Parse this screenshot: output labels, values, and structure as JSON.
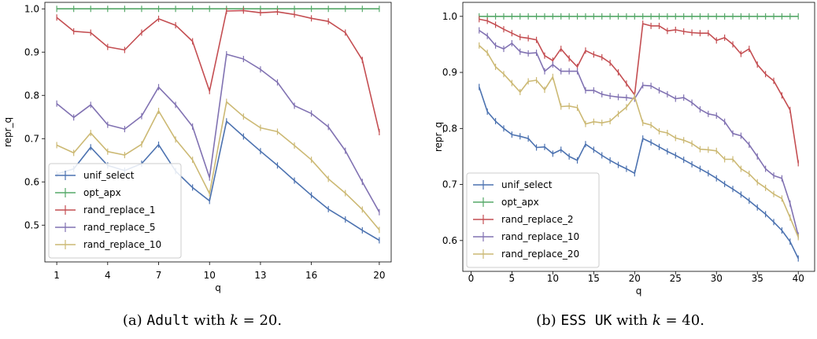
{
  "chart_data": [
    {
      "type": "line",
      "xlabel": "q",
      "ylabel": "repr_q",
      "xlim": [
        0.3,
        20.7
      ],
      "ylim": [
        0.415,
        1.015
      ],
      "xticks": [
        1,
        4,
        7,
        10,
        13,
        16,
        20
      ],
      "yticks": [
        0.5,
        0.6,
        0.7,
        0.8,
        0.9,
        1.0
      ],
      "ytick_labels": [
        "0.5",
        "0.6",
        "0.7",
        "0.8",
        "0.9",
        "1.0"
      ],
      "legend_position": "lower-left",
      "x": [
        1,
        2,
        3,
        4,
        5,
        6,
        7,
        8,
        9,
        10,
        11,
        12,
        13,
        14,
        15,
        16,
        17,
        18,
        19,
        20
      ],
      "series": [
        {
          "name": "unif_select",
          "color": "#4c72b0",
          "values": [
            0.618,
            0.63,
            0.68,
            0.638,
            0.626,
            0.642,
            0.686,
            0.625,
            0.587,
            0.556,
            0.74,
            0.705,
            0.671,
            0.638,
            0.603,
            0.569,
            0.537,
            0.513,
            0.488,
            0.465
          ]
        },
        {
          "name": "opt_apx",
          "color": "#55a868",
          "values": [
            1.0,
            1.0,
            1.0,
            1.0,
            1.0,
            1.0,
            1.0,
            1.0,
            1.0,
            1.0,
            1.0,
            1.0,
            1.0,
            1.0,
            1.0,
            1.0,
            1.0,
            1.0,
            1.0,
            1.0
          ]
        },
        {
          "name": "rand_replace_1",
          "color": "#c44e52",
          "values": [
            0.98,
            0.948,
            0.945,
            0.912,
            0.905,
            0.945,
            0.977,
            0.962,
            0.925,
            0.81,
            0.995,
            0.996,
            0.991,
            0.993,
            0.987,
            0.978,
            0.971,
            0.945,
            0.882,
            0.715
          ]
        },
        {
          "name": "rand_replace_5",
          "color": "#8172b2",
          "values": [
            0.781,
            0.749,
            0.778,
            0.732,
            0.722,
            0.752,
            0.819,
            0.778,
            0.728,
            0.61,
            0.895,
            0.884,
            0.86,
            0.83,
            0.776,
            0.758,
            0.727,
            0.672,
            0.6,
            0.53
          ]
        },
        {
          "name": "rand_replace_10",
          "color": "#ccb974",
          "values": [
            0.685,
            0.667,
            0.713,
            0.67,
            0.662,
            0.687,
            0.764,
            0.698,
            0.651,
            0.573,
            0.785,
            0.751,
            0.725,
            0.716,
            0.684,
            0.651,
            0.607,
            0.574,
            0.536,
            0.489
          ]
        }
      ]
    },
    {
      "type": "line",
      "xlabel": "q",
      "ylabel": "repr_q",
      "xlim": [
        -1.0,
        42.0
      ],
      "ylim": [
        0.545,
        1.025
      ],
      "xticks": [
        0,
        5,
        10,
        15,
        20,
        25,
        30,
        35,
        40
      ],
      "yticks": [
        0.6,
        0.7,
        0.8,
        0.9,
        1.0
      ],
      "ytick_labels": [
        "0.6",
        "0.7",
        "0.8",
        "0.9",
        "1.0"
      ],
      "legend_position": "lower-left",
      "x": [
        1,
        2,
        3,
        4,
        5,
        6,
        7,
        8,
        9,
        10,
        11,
        12,
        13,
        14,
        15,
        16,
        17,
        18,
        19,
        20,
        21,
        22,
        23,
        24,
        25,
        26,
        27,
        28,
        29,
        30,
        31,
        32,
        33,
        34,
        35,
        36,
        37,
        38,
        39,
        40
      ],
      "series": [
        {
          "name": "unif_select",
          "color": "#4c72b0",
          "values": [
            0.874,
            0.83,
            0.813,
            0.8,
            0.789,
            0.786,
            0.782,
            0.766,
            0.767,
            0.755,
            0.762,
            0.75,
            0.743,
            0.772,
            0.762,
            0.752,
            0.743,
            0.735,
            0.728,
            0.72,
            0.782,
            0.775,
            0.767,
            0.759,
            0.752,
            0.744,
            0.736,
            0.728,
            0.72,
            0.711,
            0.701,
            0.692,
            0.682,
            0.671,
            0.659,
            0.647,
            0.633,
            0.618,
            0.598,
            0.568
          ]
        },
        {
          "name": "opt_apx",
          "color": "#55a868",
          "values": [
            1.0,
            1.0,
            1.0,
            1.0,
            1.0,
            1.0,
            1.0,
            1.0,
            1.0,
            1.0,
            1.0,
            1.0,
            1.0,
            1.0,
            1.0,
            1.0,
            1.0,
            1.0,
            1.0,
            1.0,
            1.0,
            1.0,
            1.0,
            1.0,
            1.0,
            1.0,
            1.0,
            1.0,
            1.0,
            1.0,
            1.0,
            1.0,
            1.0,
            1.0,
            1.0,
            1.0,
            1.0,
            1.0,
            1.0,
            1.0
          ]
        },
        {
          "name": "rand_replace_2",
          "color": "#c44e52",
          "values": [
            0.995,
            0.992,
            0.985,
            0.977,
            0.97,
            0.963,
            0.961,
            0.958,
            0.93,
            0.921,
            0.942,
            0.925,
            0.91,
            0.939,
            0.932,
            0.927,
            0.917,
            0.9,
            0.88,
            0.86,
            0.987,
            0.983,
            0.983,
            0.974,
            0.976,
            0.973,
            0.971,
            0.97,
            0.97,
            0.957,
            0.962,
            0.95,
            0.933,
            0.942,
            0.914,
            0.897,
            0.885,
            0.859,
            0.833,
            0.738
          ]
        },
        {
          "name": "rand_replace_10",
          "color": "#8172b2",
          "values": [
            0.975,
            0.965,
            0.948,
            0.942,
            0.952,
            0.937,
            0.934,
            0.935,
            0.902,
            0.914,
            0.902,
            0.902,
            0.902,
            0.868,
            0.868,
            0.861,
            0.858,
            0.856,
            0.855,
            0.853,
            0.877,
            0.876,
            0.868,
            0.861,
            0.853,
            0.855,
            0.846,
            0.834,
            0.826,
            0.823,
            0.812,
            0.791,
            0.787,
            0.771,
            0.75,
            0.728,
            0.716,
            0.711,
            0.666,
            0.609
          ]
        },
        {
          "name": "rand_replace_20",
          "color": "#ccb974",
          "values": [
            0.948,
            0.935,
            0.91,
            0.897,
            0.881,
            0.865,
            0.884,
            0.886,
            0.869,
            0.892,
            0.839,
            0.84,
            0.837,
            0.808,
            0.812,
            0.81,
            0.813,
            0.826,
            0.838,
            0.857,
            0.81,
            0.806,
            0.795,
            0.792,
            0.783,
            0.779,
            0.773,
            0.763,
            0.762,
            0.76,
            0.745,
            0.745,
            0.728,
            0.719,
            0.704,
            0.694,
            0.683,
            0.675,
            0.641,
            0.606
          ]
        }
      ]
    }
  ],
  "captions": [
    {
      "prefix": "(a) ",
      "dataset": "Adult",
      "mid": " with ",
      "var": "k",
      "eq": " = 20."
    },
    {
      "prefix": "(b) ",
      "dataset": "ESS UK",
      "mid": " with ",
      "var": "k",
      "eq": " = 40."
    }
  ]
}
